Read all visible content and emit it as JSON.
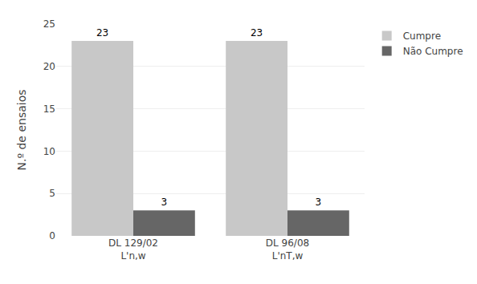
{
  "chart_data": {
    "type": "bar",
    "categories": [
      "DL 129/02\nL'n,w",
      "DL 96/08\nL'nT,w"
    ],
    "series": [
      {
        "name": "Cumpre",
        "color": "#c8c8c8",
        "values": [
          23,
          23
        ]
      },
      {
        "name": "Não Cumpre",
        "color": "#666666",
        "values": [
          3,
          3
        ]
      }
    ],
    "ylabel": "N.º de ensaios",
    "ylim": [
      0,
      25
    ],
    "yticks": [
      0,
      5,
      10,
      15,
      20,
      25
    ],
    "grid": true,
    "legend": "upper right",
    "data_labels": true
  }
}
